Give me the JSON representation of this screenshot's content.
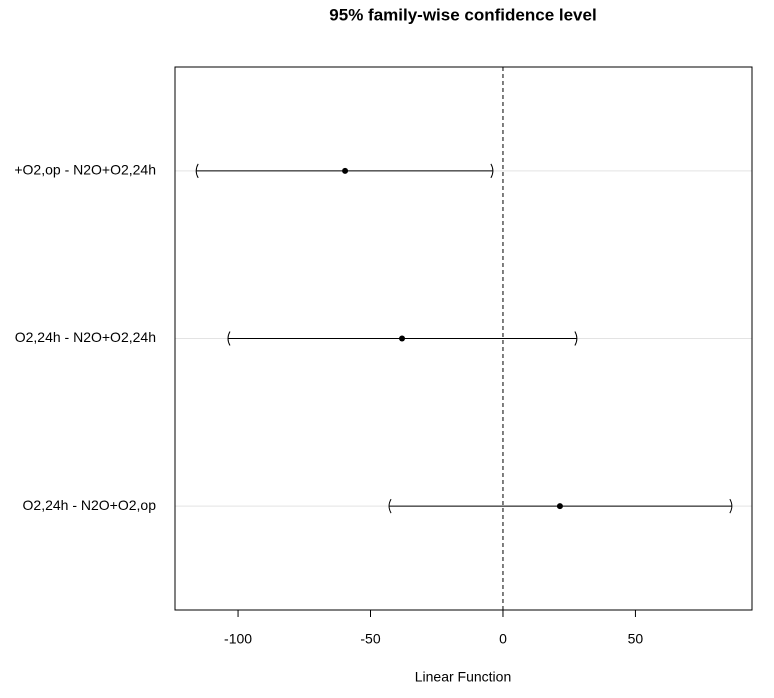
{
  "chart_data": {
    "type": "interval",
    "title": "95% family-wise confidence level",
    "x_label": "Linear Function",
    "categories": [
      "+O2,op - N2O+O2,24h",
      "O2,24h - N2O+O2,24h",
      "O2,24h - N2O+O2,op"
    ],
    "estimates": [
      -59.6,
      -38.1,
      21.5
    ],
    "lower": [
      -115.8,
      -103.8,
      -43.0
    ],
    "upper": [
      -3.8,
      27.9,
      86.4
    ],
    "xlim": [
      -123.8,
      94.0
    ],
    "xticks": [
      -100,
      -50,
      0,
      50
    ],
    "reference_line": 0,
    "grid": true,
    "color": "#000000"
  }
}
